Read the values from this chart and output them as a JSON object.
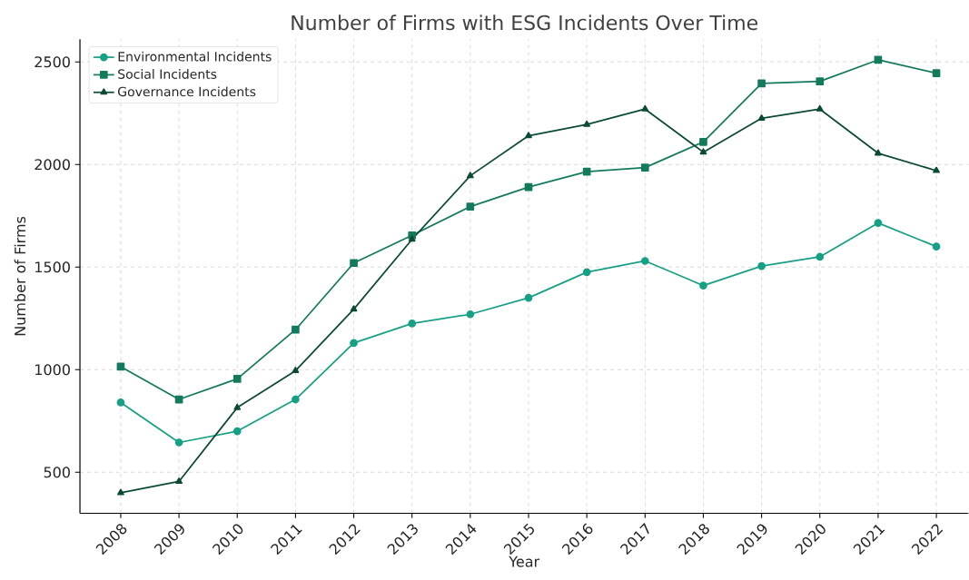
{
  "chart_data": {
    "type": "line",
    "title": "Number of Firms with ESG Incidents Over Time",
    "xlabel": "Year",
    "ylabel": "Number of Firms",
    "x": [
      2008,
      2009,
      2010,
      2011,
      2012,
      2013,
      2014,
      2015,
      2016,
      2017,
      2018,
      2019,
      2020,
      2021,
      2022
    ],
    "series": [
      {
        "name": "Environmental Incidents",
        "color": "#16a085",
        "marker": "circle",
        "values": [
          840,
          645,
          700,
          855,
          1130,
          1225,
          1270,
          1350,
          1475,
          1530,
          1410,
          1505,
          1550,
          1715,
          1600
        ]
      },
      {
        "name": "Social Incidents",
        "color": "#137a5e",
        "marker": "square",
        "values": [
          1015,
          855,
          955,
          1195,
          1520,
          1655,
          1795,
          1890,
          1965,
          1985,
          2110,
          2395,
          2405,
          2510,
          2445
        ]
      },
      {
        "name": "Governance Incidents",
        "color": "#0b4a33",
        "marker": "triangle",
        "values": [
          400,
          455,
          815,
          995,
          1295,
          1635,
          1945,
          2140,
          2195,
          2270,
          2060,
          2225,
          2270,
          2055,
          1970
        ]
      }
    ],
    "xlim": [
      2007.3,
      2022.55
    ],
    "ylim": [
      300,
      2610
    ],
    "xticks": [
      2008,
      2009,
      2010,
      2011,
      2012,
      2013,
      2014,
      2015,
      2016,
      2017,
      2018,
      2019,
      2020,
      2021,
      2022
    ],
    "yticks": [
      500,
      1000,
      1500,
      2000,
      2500
    ],
    "grid": true,
    "legend": "top left",
    "line_style": "solid"
  }
}
